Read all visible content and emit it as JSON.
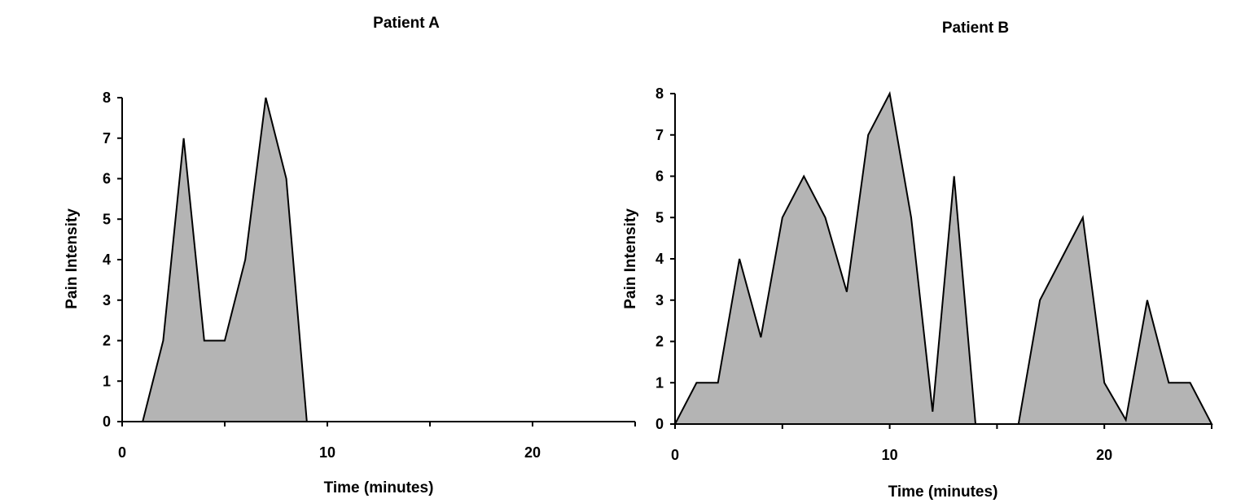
{
  "chart_data": [
    {
      "type": "area",
      "title": "Patient A",
      "xlabel": "Time (minutes)",
      "ylabel": "Pain Intensity",
      "xlim": [
        0,
        25
      ],
      "ylim": [
        0,
        8
      ],
      "x_ticks": [
        0,
        10,
        20
      ],
      "y_ticks": [
        0,
        1,
        2,
        3,
        4,
        5,
        6,
        7,
        8
      ],
      "grid": false,
      "legend": "none",
      "fill_color": "#b4b4b4",
      "line_color": "#000000",
      "series": [
        {
          "x": [
            1,
            2,
            3,
            4,
            5,
            6,
            7,
            8,
            9
          ],
          "y": [
            0,
            2,
            7,
            2,
            2,
            4,
            8,
            6,
            0
          ]
        }
      ]
    },
    {
      "type": "area",
      "title": "Patient B",
      "xlabel": "Time (minutes)",
      "ylabel": "Pain Intensity",
      "xlim": [
        0,
        25
      ],
      "ylim": [
        0,
        8
      ],
      "x_ticks": [
        0,
        10,
        20
      ],
      "y_ticks": [
        0,
        1,
        2,
        3,
        4,
        5,
        6,
        7,
        8
      ],
      "grid": false,
      "legend": "none",
      "fill_color": "#b4b4b4",
      "line_color": "#000000",
      "series": [
        {
          "x": [
            0,
            1,
            2,
            3,
            4,
            5,
            6,
            7,
            8,
            9,
            10,
            11,
            12,
            13,
            14
          ],
          "y": [
            0,
            1,
            1,
            4,
            2.1,
            5,
            6,
            5,
            3.2,
            7,
            8,
            5,
            0.3,
            6,
            0
          ]
        },
        {
          "x": [
            16,
            17,
            18,
            19,
            20,
            21,
            22,
            23,
            24,
            25
          ],
          "y": [
            0,
            3,
            4,
            5,
            1,
            0.1,
            3,
            1,
            1,
            0
          ]
        }
      ]
    }
  ]
}
